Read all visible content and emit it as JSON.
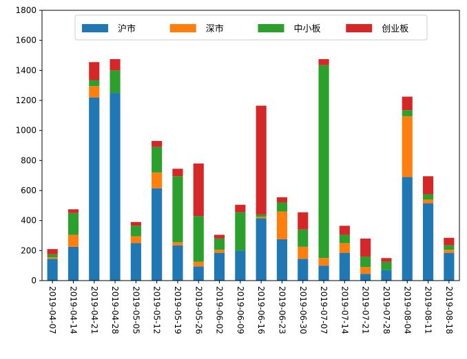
{
  "chart_data": {
    "type": "bar",
    "stacked": true,
    "title": "",
    "xlabel": "",
    "ylabel": "",
    "ylim": [
      0,
      1800
    ],
    "yticks": [
      0,
      200,
      400,
      600,
      800,
      1000,
      1200,
      1400,
      1600,
      1800
    ],
    "grid": false,
    "legend_position": "top-center",
    "categories": [
      "2019-04-07",
      "2019-04-14",
      "2019-04-21",
      "2019-04-28",
      "2019-05-05",
      "2019-05-12",
      "2019-05-19",
      "2019-05-26",
      "2019-06-02",
      "2019-06-09",
      "2019-06-16",
      "2019-06-23",
      "2019-06-30",
      "2019-07-07",
      "2019-07-14",
      "2019-07-21",
      "2019-07-28",
      "2019-08-04",
      "2019-08-11",
      "2019-08-18"
    ],
    "series": [
      {
        "name": "沪市",
        "color": "#1f77b4",
        "values": [
          145,
          225,
          1220,
          1250,
          250,
          615,
          235,
          95,
          185,
          200,
          415,
          275,
          145,
          100,
          185,
          45,
          70,
          690,
          515,
          185
        ]
      },
      {
        "name": "深市",
        "color": "#ff7f0e",
        "values": [
          10,
          80,
          75,
          0,
          45,
          105,
          20,
          30,
          20,
          0,
          10,
          185,
          80,
          50,
          65,
          45,
          0,
          405,
          25,
          20
        ]
      },
      {
        "name": "中小板",
        "color": "#2ca02c",
        "values": [
          20,
          145,
          40,
          150,
          70,
          170,
          440,
          305,
          75,
          255,
          15,
          60,
          115,
          1285,
          55,
          70,
          55,
          40,
          35,
          30
        ]
      },
      {
        "name": "创业板",
        "color": "#d62728",
        "values": [
          35,
          25,
          120,
          75,
          25,
          40,
          50,
          350,
          25,
          50,
          725,
          35,
          115,
          40,
          60,
          120,
          25,
          90,
          120,
          50
        ]
      }
    ]
  }
}
